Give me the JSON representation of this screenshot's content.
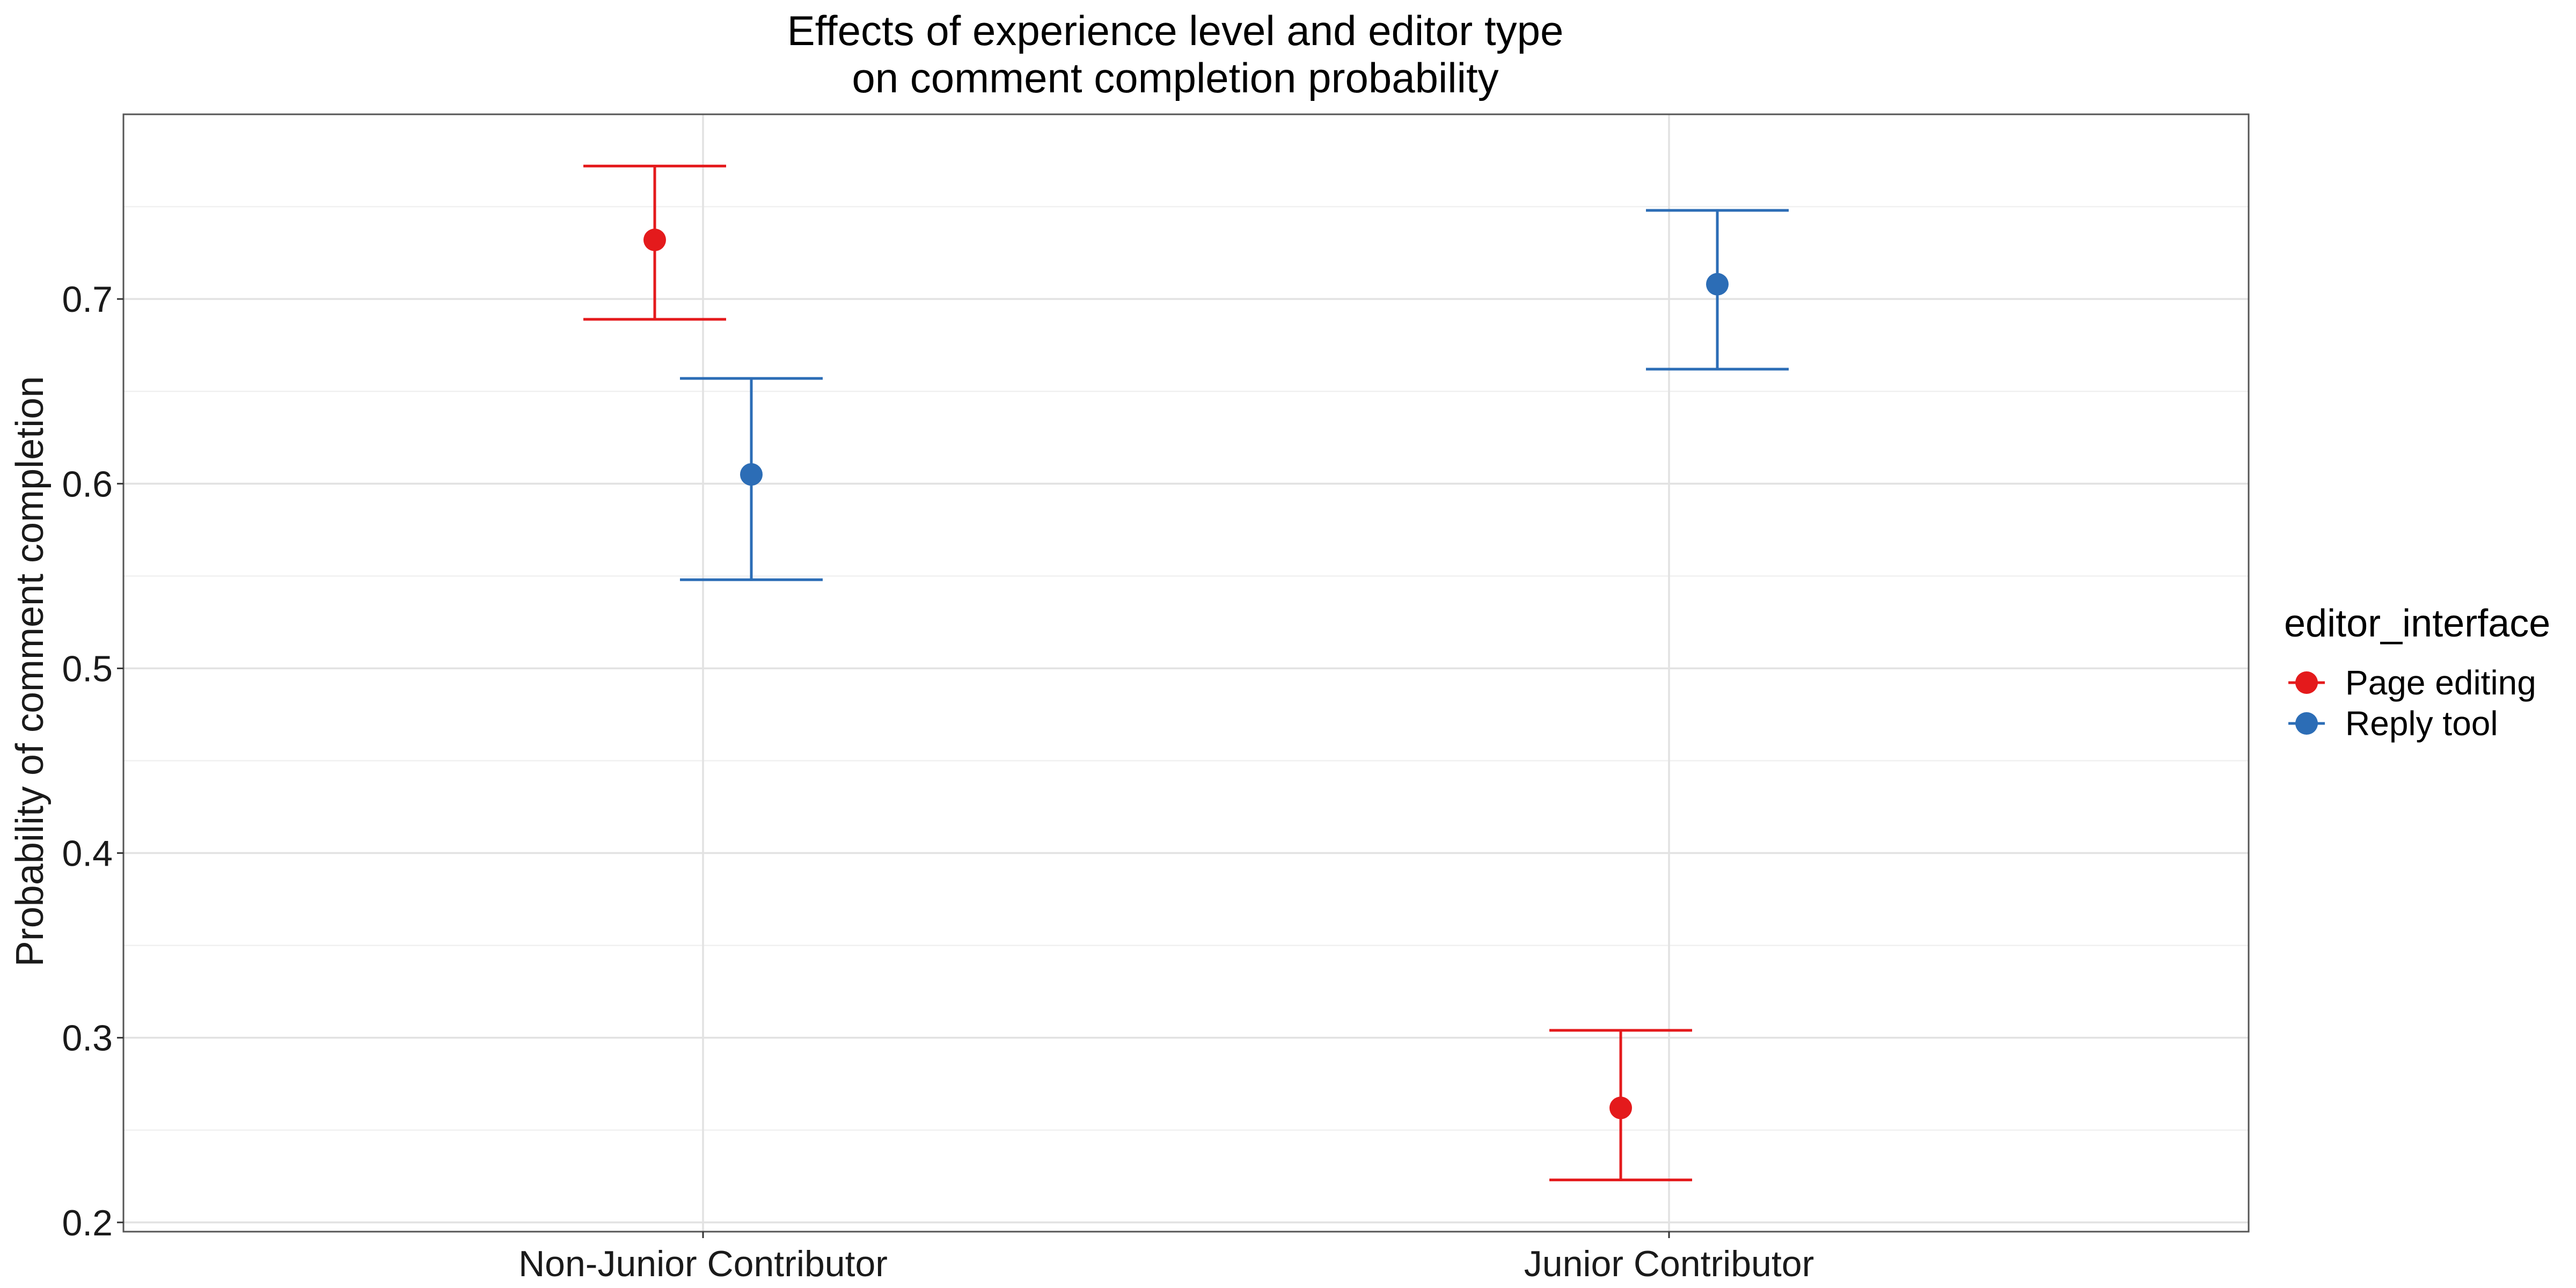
{
  "chart_data": {
    "type": "errorbar",
    "title_line1": "Effects of experience level and editor type",
    "title_line2": "on comment completion probability",
    "xlabel": "",
    "ylabel": "Probability of comment completion",
    "categories": [
      "Non-Junior Contributor",
      "Junior Contributor"
    ],
    "ylim": [
      0.195,
      0.8
    ],
    "y_ticks": [
      0.2,
      0.3,
      0.4,
      0.5,
      0.6,
      0.7
    ],
    "y_tick_labels": [
      "0.2",
      "0.3",
      "0.4",
      "0.5",
      "0.6",
      "0.7"
    ],
    "grid": true,
    "legend_position": "right",
    "legend_title": "editor_interface",
    "series": [
      {
        "name": "Page editing",
        "color": "#E41A1C",
        "points": [
          {
            "category": "Non-Junior Contributor",
            "estimate": 0.732,
            "lower": 0.689,
            "upper": 0.772
          },
          {
            "category": "Junior Contributor",
            "estimate": 0.262,
            "lower": 0.223,
            "upper": 0.304
          }
        ]
      },
      {
        "name": "Reply tool",
        "color": "#2C6DB6",
        "points": [
          {
            "category": "Non-Junior Contributor",
            "estimate": 0.605,
            "lower": 0.548,
            "upper": 0.657
          },
          {
            "category": "Junior Contributor",
            "estimate": 0.708,
            "lower": 0.662,
            "upper": 0.748
          }
        ]
      }
    ]
  }
}
